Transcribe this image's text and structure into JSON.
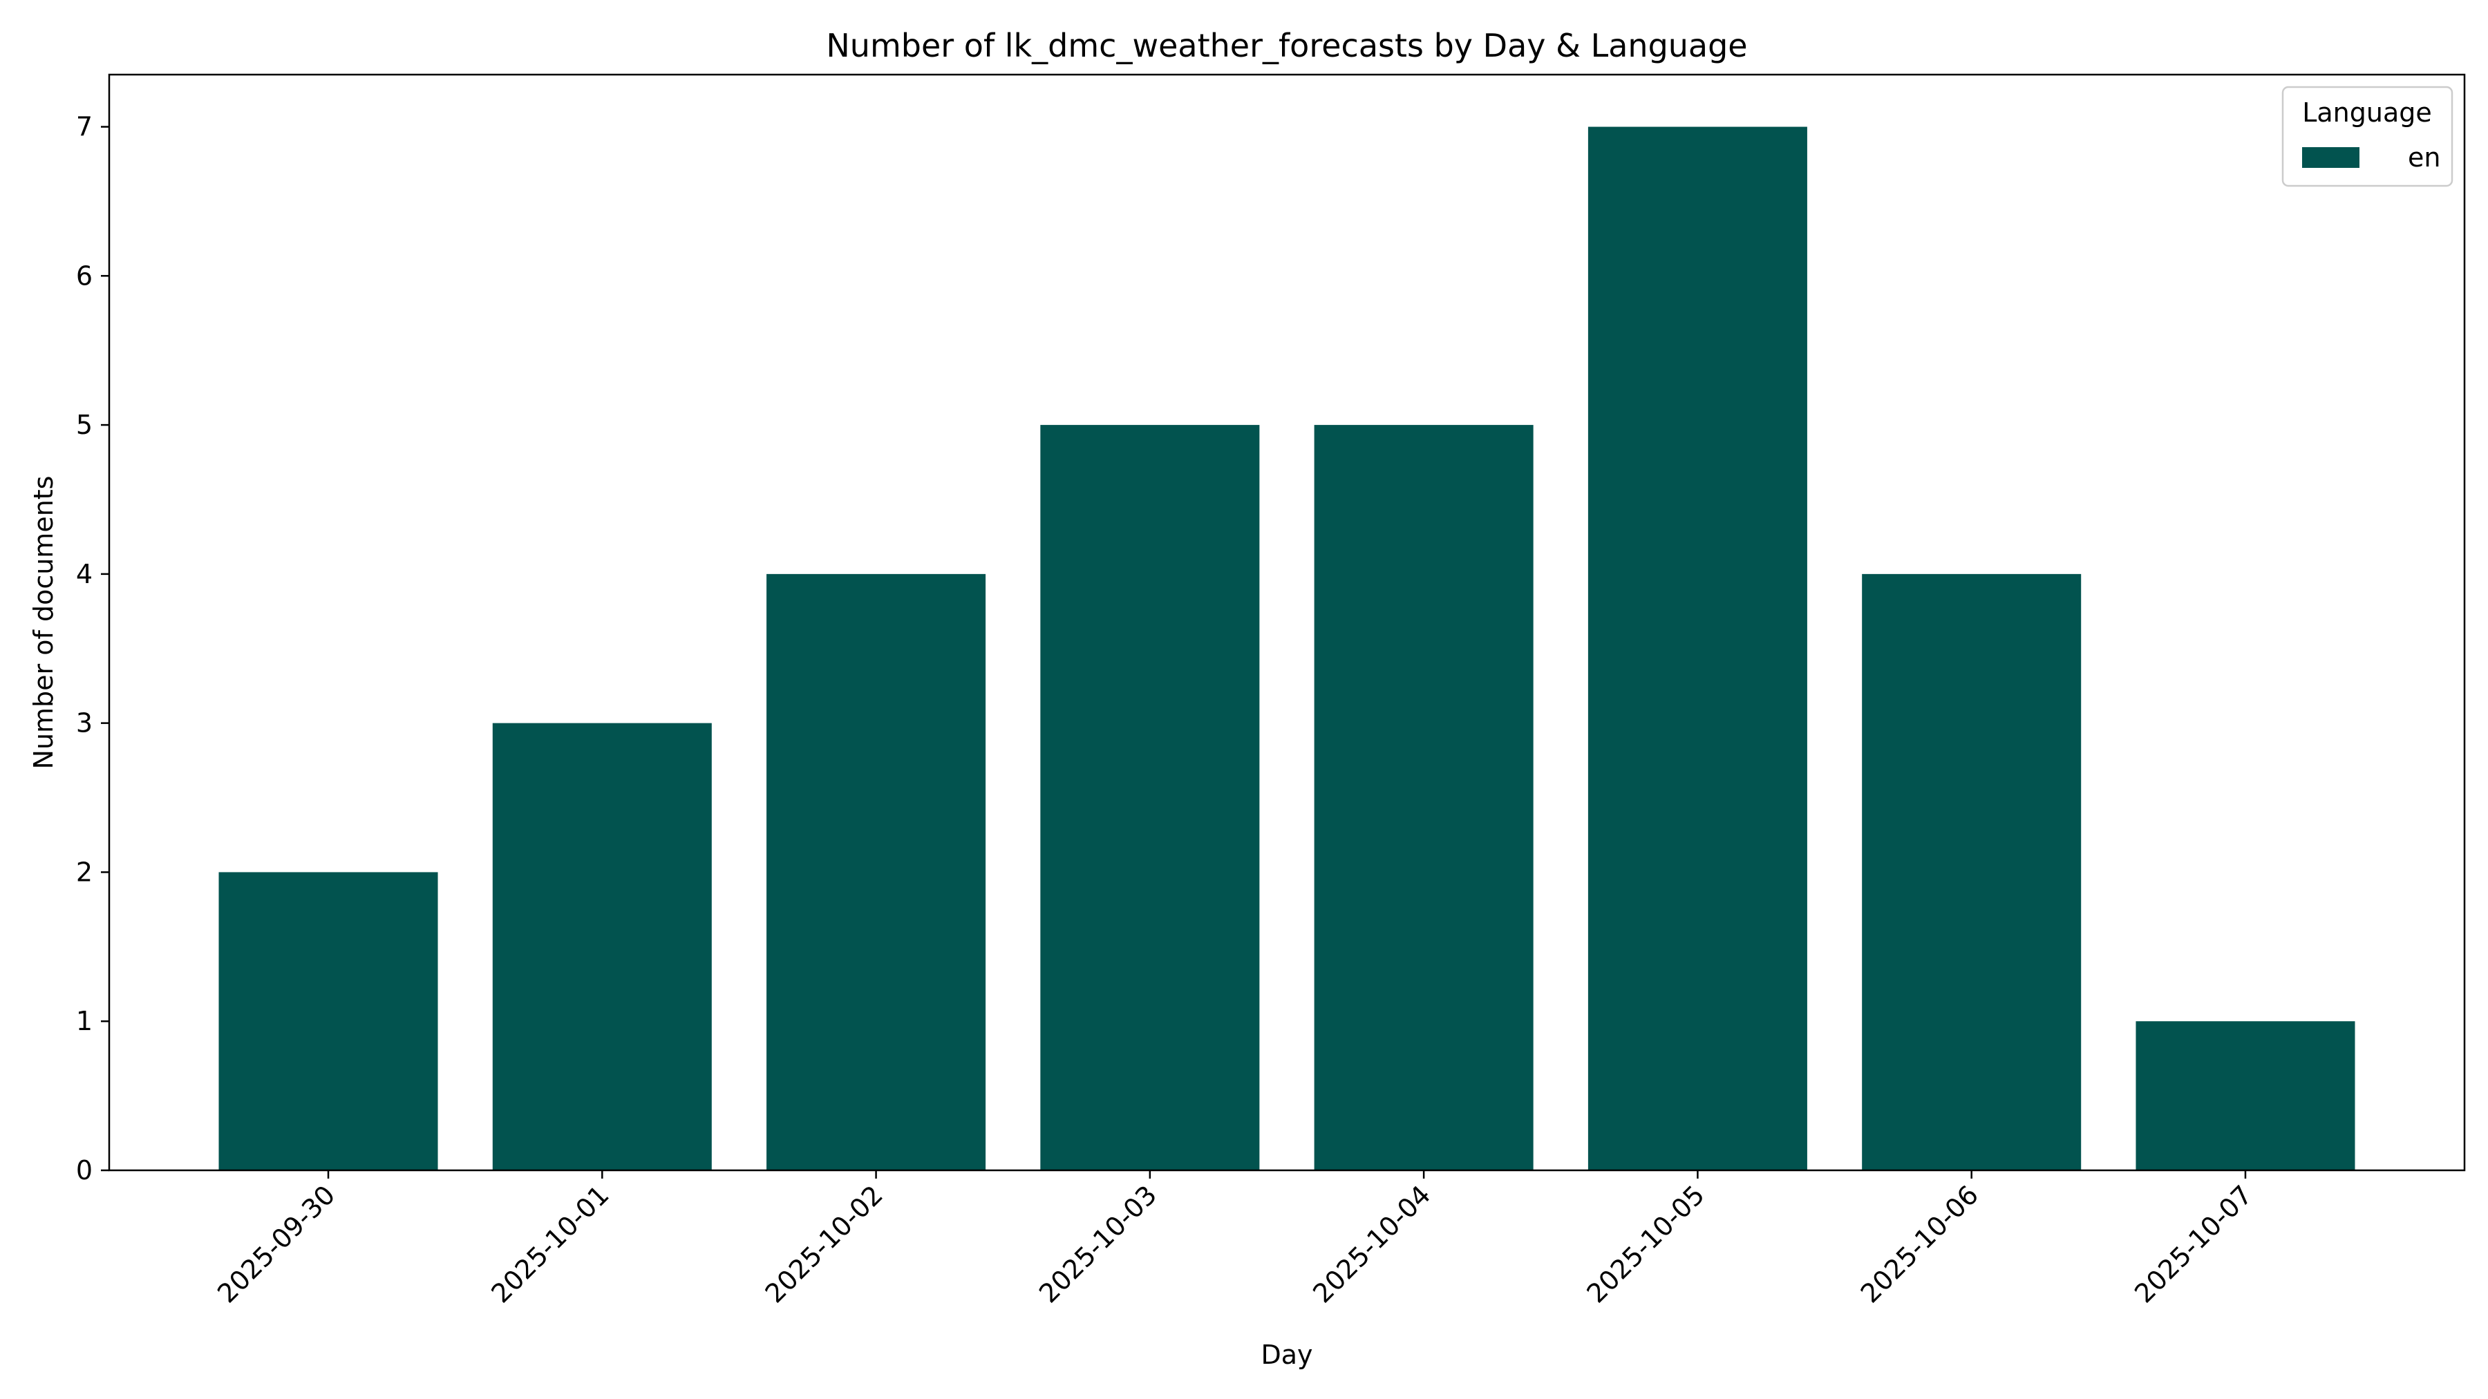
{
  "chart_data": {
    "type": "bar",
    "title": "Number of lk_dmc_weather_forecasts by Day & Language",
    "xlabel": "Day",
    "ylabel": "Number of documents",
    "categories": [
      "2025-09-30",
      "2025-10-01",
      "2025-10-02",
      "2025-10-03",
      "2025-10-04",
      "2025-10-05",
      "2025-10-06",
      "2025-10-07"
    ],
    "series": [
      {
        "name": "en",
        "values": [
          2,
          3,
          4,
          5,
          5,
          7,
          4,
          1
        ],
        "color": "#02534f"
      }
    ],
    "yticks": [
      0,
      1,
      2,
      3,
      4,
      5,
      6,
      7
    ],
    "ylim": [
      0,
      7.35
    ],
    "grid": false,
    "legend": {
      "title": "Language",
      "placement": "top-right"
    }
  }
}
